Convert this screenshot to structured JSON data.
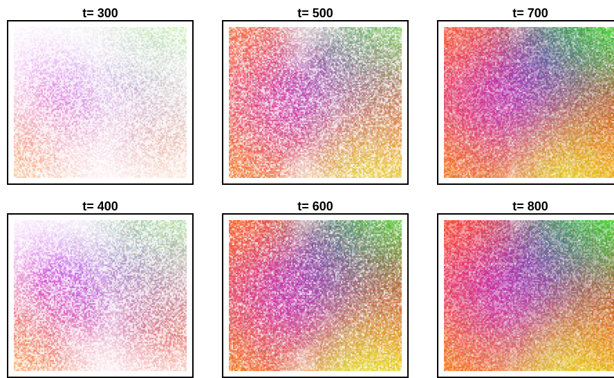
{
  "chart_data": [
    {
      "type": "heatmap",
      "title": "t= 300",
      "t": 300,
      "coverage": 0.25,
      "regions": [
        {
          "color": "#ff8c00",
          "x": 0.05,
          "y": 0.8
        },
        {
          "color": "#c000ff",
          "x": 0.3,
          "y": 0.5
        },
        {
          "color": "#ff8c40",
          "x": 0.85,
          "y": 0.65
        },
        {
          "color": "#6a7aff",
          "x": 0.75,
          "y": 0.4
        },
        {
          "color": "#a8ff60",
          "x": 0.85,
          "y": 0.05
        }
      ]
    },
    {
      "type": "heatmap",
      "title": "t= 400",
      "t": 400,
      "coverage": 0.45,
      "regions": [
        {
          "color": "#ff8c00",
          "x": 0.05,
          "y": 0.8
        },
        {
          "color": "#c000ff",
          "x": 0.3,
          "y": 0.5
        },
        {
          "color": "#ff5020",
          "x": 0.88,
          "y": 0.6
        },
        {
          "color": "#5a6aff",
          "x": 0.75,
          "y": 0.35
        },
        {
          "color": "#a8ff60",
          "x": 0.85,
          "y": 0.05
        }
      ]
    },
    {
      "type": "heatmap",
      "title": "t= 500",
      "t": 500,
      "coverage": 0.7,
      "regions": [
        {
          "color": "#ff8c00",
          "x": 0.05,
          "y": 0.8
        },
        {
          "color": "#c000ff",
          "x": 0.32,
          "y": 0.55
        },
        {
          "color": "#ff4010",
          "x": 0.95,
          "y": 0.55
        },
        {
          "color": "#5060e0",
          "x": 0.75,
          "y": 0.3
        },
        {
          "color": "#88ff30",
          "x": 0.95,
          "y": 0.05
        },
        {
          "color": "#e8ff40",
          "x": 0.8,
          "y": 0.85
        },
        {
          "color": "#ff7030",
          "x": 0.05,
          "y": 0.2
        }
      ]
    },
    {
      "type": "heatmap",
      "title": "t= 600",
      "t": 600,
      "coverage": 0.85,
      "regions": [
        {
          "color": "#ff8c00",
          "x": 0.05,
          "y": 0.8
        },
        {
          "color": "#c000ff",
          "x": 0.3,
          "y": 0.55
        },
        {
          "color": "#ff3000",
          "x": 0.98,
          "y": 0.5
        },
        {
          "color": "#4858d8",
          "x": 0.7,
          "y": 0.3
        },
        {
          "color": "#50ff10",
          "x": 0.98,
          "y": 0.05
        },
        {
          "color": "#e8ff30",
          "x": 0.8,
          "y": 0.85
        },
        {
          "color": "#ff6a20",
          "x": 0.05,
          "y": 0.15
        }
      ]
    },
    {
      "type": "heatmap",
      "title": "t= 700",
      "t": 700,
      "coverage": 0.95,
      "regions": [
        {
          "color": "#ff8c00",
          "x": 0.05,
          "y": 0.8
        },
        {
          "color": "#c000ff",
          "x": 0.3,
          "y": 0.55
        },
        {
          "color": "#ff3000",
          "x": 0.98,
          "y": 0.6
        },
        {
          "color": "#4050d8",
          "x": 0.7,
          "y": 0.3
        },
        {
          "color": "#40ff00",
          "x": 0.98,
          "y": 0.05
        },
        {
          "color": "#e8ff20",
          "x": 0.75,
          "y": 0.85
        },
        {
          "color": "#ff6030",
          "x": 0.05,
          "y": 0.15
        }
      ]
    },
    {
      "type": "heatmap",
      "title": "t= 800",
      "t": 800,
      "coverage": 0.98,
      "regions": [
        {
          "color": "#ff8c00",
          "x": 0.05,
          "y": 0.8
        },
        {
          "color": "#c000ff",
          "x": 0.32,
          "y": 0.55
        },
        {
          "color": "#ff3000",
          "x": 0.98,
          "y": 0.6
        },
        {
          "color": "#4050d0",
          "x": 0.7,
          "y": 0.3
        },
        {
          "color": "#40ff00",
          "x": 0.98,
          "y": 0.05
        },
        {
          "color": "#e8ff20",
          "x": 0.75,
          "y": 0.85
        },
        {
          "color": "#ff5030",
          "x": 0.05,
          "y": 0.15
        }
      ]
    }
  ]
}
